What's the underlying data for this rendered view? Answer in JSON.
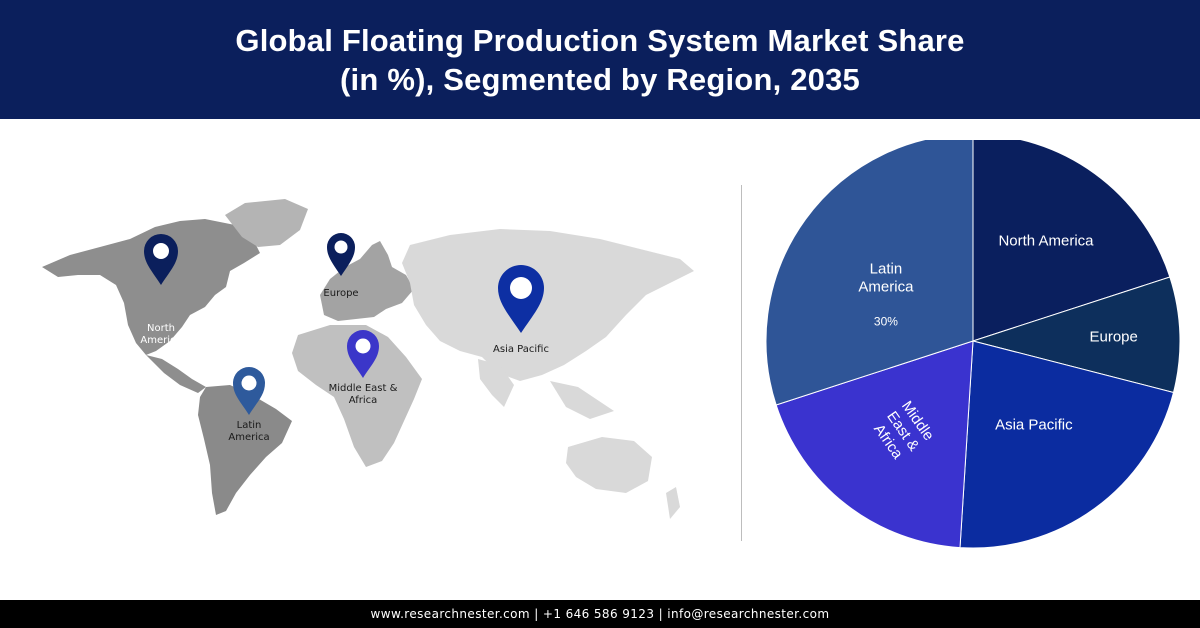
{
  "header": {
    "title_line1": "Global Floating Production System Market Share",
    "title_line2": "(in %), Segmented by Region, 2035"
  },
  "map": {
    "pins": [
      {
        "label": "North\nAmerica",
        "color": "#0b1f5c"
      },
      {
        "label": "Europe",
        "color": "#0b1f5c"
      },
      {
        "label": "Asia Pacific",
        "color": "#0d2fa3"
      },
      {
        "label": "Middle East &\nAfrica",
        "color": "#3b36c9"
      },
      {
        "label": "Latin\nAmerica",
        "color": "#2e5a9c"
      }
    ]
  },
  "chart_data": {
    "type": "pie",
    "slices": [
      {
        "label": "North America",
        "value": 20,
        "color": "#0a1f5e"
      },
      {
        "label": "Europe",
        "value": 9,
        "color": "#0d2f5c"
      },
      {
        "label": "Asia Pacific",
        "value": 22,
        "color": "#0b2ca0"
      },
      {
        "label": "Middle East & Africa",
        "value": 19,
        "color": "#3a33cf"
      },
      {
        "label": "Latin America",
        "value": 30,
        "color": "#2f5597"
      }
    ],
    "data_labels": [
      {
        "slice": "Latin America",
        "text": "30%"
      }
    ]
  },
  "footer": {
    "text": "www.researchnester.com | +1 646 586 9123 | info@researchnester.com"
  }
}
